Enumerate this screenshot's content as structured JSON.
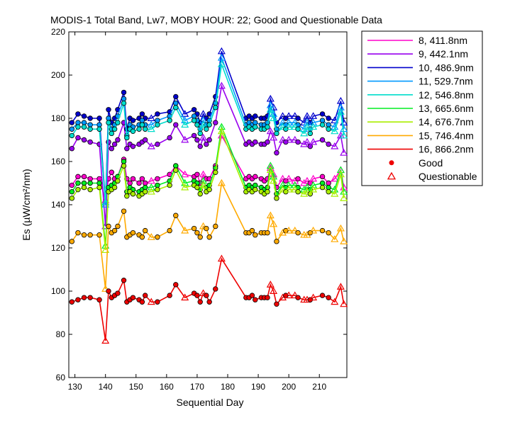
{
  "chart_data": {
    "type": "line",
    "title": "MODIS-1 Total Band,  Lw7, MOBY HOUR: 22;  Good and Questionable Data",
    "xlabel": "Sequential Day",
    "ylabel": "Es (µW/cm²/nm)",
    "xlim": [
      128,
      219
    ],
    "ylim": [
      60,
      220
    ],
    "xticks": [
      130,
      140,
      150,
      160,
      170,
      180,
      190,
      200,
      210
    ],
    "yticks": [
      60,
      80,
      100,
      120,
      140,
      160,
      180,
      200,
      220
    ],
    "grid": false,
    "legend_position": "outside-right",
    "x": [
      129,
      131,
      133,
      135,
      138,
      140,
      141,
      142,
      143,
      144,
      146,
      147,
      148,
      149,
      151,
      152,
      153,
      155,
      157,
      161,
      163,
      166,
      169,
      170,
      171,
      172,
      173,
      174,
      176,
      178,
      186,
      187,
      188,
      189,
      191,
      192,
      193,
      194,
      195,
      196,
      198,
      199,
      200,
      202,
      203,
      205,
      206,
      207,
      208,
      211,
      213,
      215,
      217,
      218
    ],
    "q_x": [
      140,
      155,
      166,
      172,
      178,
      194,
      195,
      198,
      200,
      202,
      205,
      206,
      208,
      215,
      217,
      218
    ],
    "series": [
      {
        "name": "8, 411.8nm",
        "color": "#ff00cc",
        "values": [
          149,
          153,
          153,
          152,
          152,
          142,
          152,
          155,
          152,
          153,
          161,
          152,
          150,
          152,
          150,
          152,
          150,
          151,
          152,
          154,
          158,
          154,
          153,
          154,
          150,
          154,
          152,
          152,
          158,
          172,
          152,
          153,
          152,
          153,
          152,
          151,
          152,
          157,
          154,
          148,
          152,
          151,
          152,
          151,
          152,
          150,
          151,
          150,
          152,
          153,
          150,
          152,
          156,
          148
        ]
      },
      {
        "name": "9, 442.1nm",
        "color": "#9900ee",
        "values": [
          166,
          171,
          170,
          169,
          168,
          130,
          169,
          166,
          168,
          170,
          178,
          166,
          168,
          167,
          168,
          169,
          170,
          167,
          168,
          171,
          177,
          170,
          172,
          170,
          167,
          171,
          168,
          170,
          178,
          195,
          168,
          169,
          168,
          169,
          168,
          168,
          169,
          174,
          171,
          164,
          170,
          169,
          170,
          170,
          169,
          168,
          169,
          167,
          169,
          170,
          168,
          167,
          172,
          164
        ]
      },
      {
        "name": "10, 486.9nm",
        "color": "#0000cc",
        "values": [
          178,
          182,
          181,
          180,
          180,
          141,
          184,
          178,
          180,
          184,
          192,
          175,
          180,
          179,
          180,
          182,
          180,
          180,
          182,
          183,
          190,
          182,
          184,
          182,
          178,
          182,
          180,
          182,
          190,
          211,
          180,
          181,
          180,
          181,
          180,
          180,
          181,
          189,
          185,
          178,
          181,
          180,
          181,
          181,
          180,
          178,
          181,
          178,
          181,
          182,
          180,
          179,
          188,
          178
        ]
      },
      {
        "name": "11, 529.7nm",
        "color": "#0099ff",
        "values": [
          175,
          178,
          178,
          177,
          177,
          140,
          180,
          175,
          177,
          181,
          189,
          172,
          177,
          176,
          177,
          179,
          177,
          177,
          179,
          181,
          187,
          179,
          181,
          179,
          175,
          179,
          177,
          179,
          187,
          208,
          177,
          178,
          177,
          178,
          177,
          177,
          178,
          186,
          182,
          175,
          178,
          177,
          178,
          178,
          177,
          175,
          178,
          175,
          178,
          179,
          177,
          176,
          185,
          175
        ]
      },
      {
        "name": "12, 546.8nm",
        "color": "#00ddcc",
        "values": [
          172,
          176,
          176,
          175,
          175,
          141,
          178,
          173,
          175,
          178,
          187,
          171,
          175,
          174,
          175,
          177,
          175,
          175,
          177,
          179,
          185,
          177,
          179,
          177,
          173,
          177,
          175,
          177,
          185,
          205,
          175,
          176,
          175,
          176,
          175,
          175,
          176,
          184,
          180,
          173,
          176,
          175,
          176,
          176,
          175,
          173,
          176,
          173,
          176,
          177,
          175,
          174,
          183,
          172
        ]
      },
      {
        "name": "13, 665.6nm",
        "color": "#00ee22",
        "values": [
          146,
          150,
          150,
          150,
          150,
          121,
          148,
          149,
          150,
          153,
          160,
          146,
          148,
          147,
          146,
          147,
          148,
          148,
          149,
          151,
          158,
          150,
          151,
          150,
          147,
          151,
          148,
          149,
          157,
          176,
          148,
          149,
          148,
          149,
          148,
          147,
          148,
          158,
          153,
          145,
          149,
          148,
          149,
          149,
          148,
          147,
          148,
          147,
          149,
          150,
          148,
          147,
          156,
          146
        ]
      },
      {
        "name": "14, 676.7nm",
        "color": "#aaee00",
        "values": [
          143,
          147,
          148,
          147,
          148,
          119,
          146,
          147,
          148,
          151,
          158,
          144,
          146,
          145,
          144,
          145,
          146,
          146,
          147,
          149,
          156,
          148,
          149,
          148,
          145,
          149,
          146,
          147,
          155,
          174,
          146,
          147,
          146,
          147,
          146,
          145,
          146,
          156,
          151,
          143,
          147,
          146,
          147,
          147,
          146,
          145,
          146,
          145,
          147,
          148,
          146,
          145,
          154,
          143
        ]
      },
      {
        "name": "15, 746.4nm",
        "color": "#ffaa00",
        "values": [
          123,
          127,
          126,
          126,
          126,
          101,
          130,
          127,
          128,
          130,
          137,
          125,
          126,
          127,
          126,
          125,
          128,
          125,
          125,
          128,
          135,
          128,
          129,
          127,
          125,
          130,
          129,
          125,
          130,
          150,
          127,
          127,
          128,
          126,
          127,
          127,
          127,
          135,
          131,
          123,
          127,
          128,
          128,
          128,
          127,
          126,
          126,
          127,
          128,
          128,
          127,
          124,
          129,
          123
        ]
      },
      {
        "name": "16, 866.2nm",
        "color": "#ee0000",
        "values": [
          95,
          96,
          97,
          97,
          96,
          77,
          100,
          97,
          98,
          99,
          105,
          95,
          96,
          97,
          96,
          95,
          98,
          95,
          95,
          98,
          103,
          97,
          99,
          98,
          95,
          99,
          98,
          95,
          101,
          115,
          97,
          97,
          98,
          96,
          97,
          97,
          97,
          103,
          100,
          94,
          97,
          98,
          98,
          98,
          97,
          96,
          96,
          96,
          97,
          98,
          97,
          95,
          102,
          94
        ]
      }
    ],
    "markers": [
      {
        "name": "Good",
        "symbol": "filled-circle",
        "color": "#ee0000"
      },
      {
        "name": "Questionable",
        "symbol": "open-triangle",
        "color": "#ee0000"
      }
    ]
  }
}
